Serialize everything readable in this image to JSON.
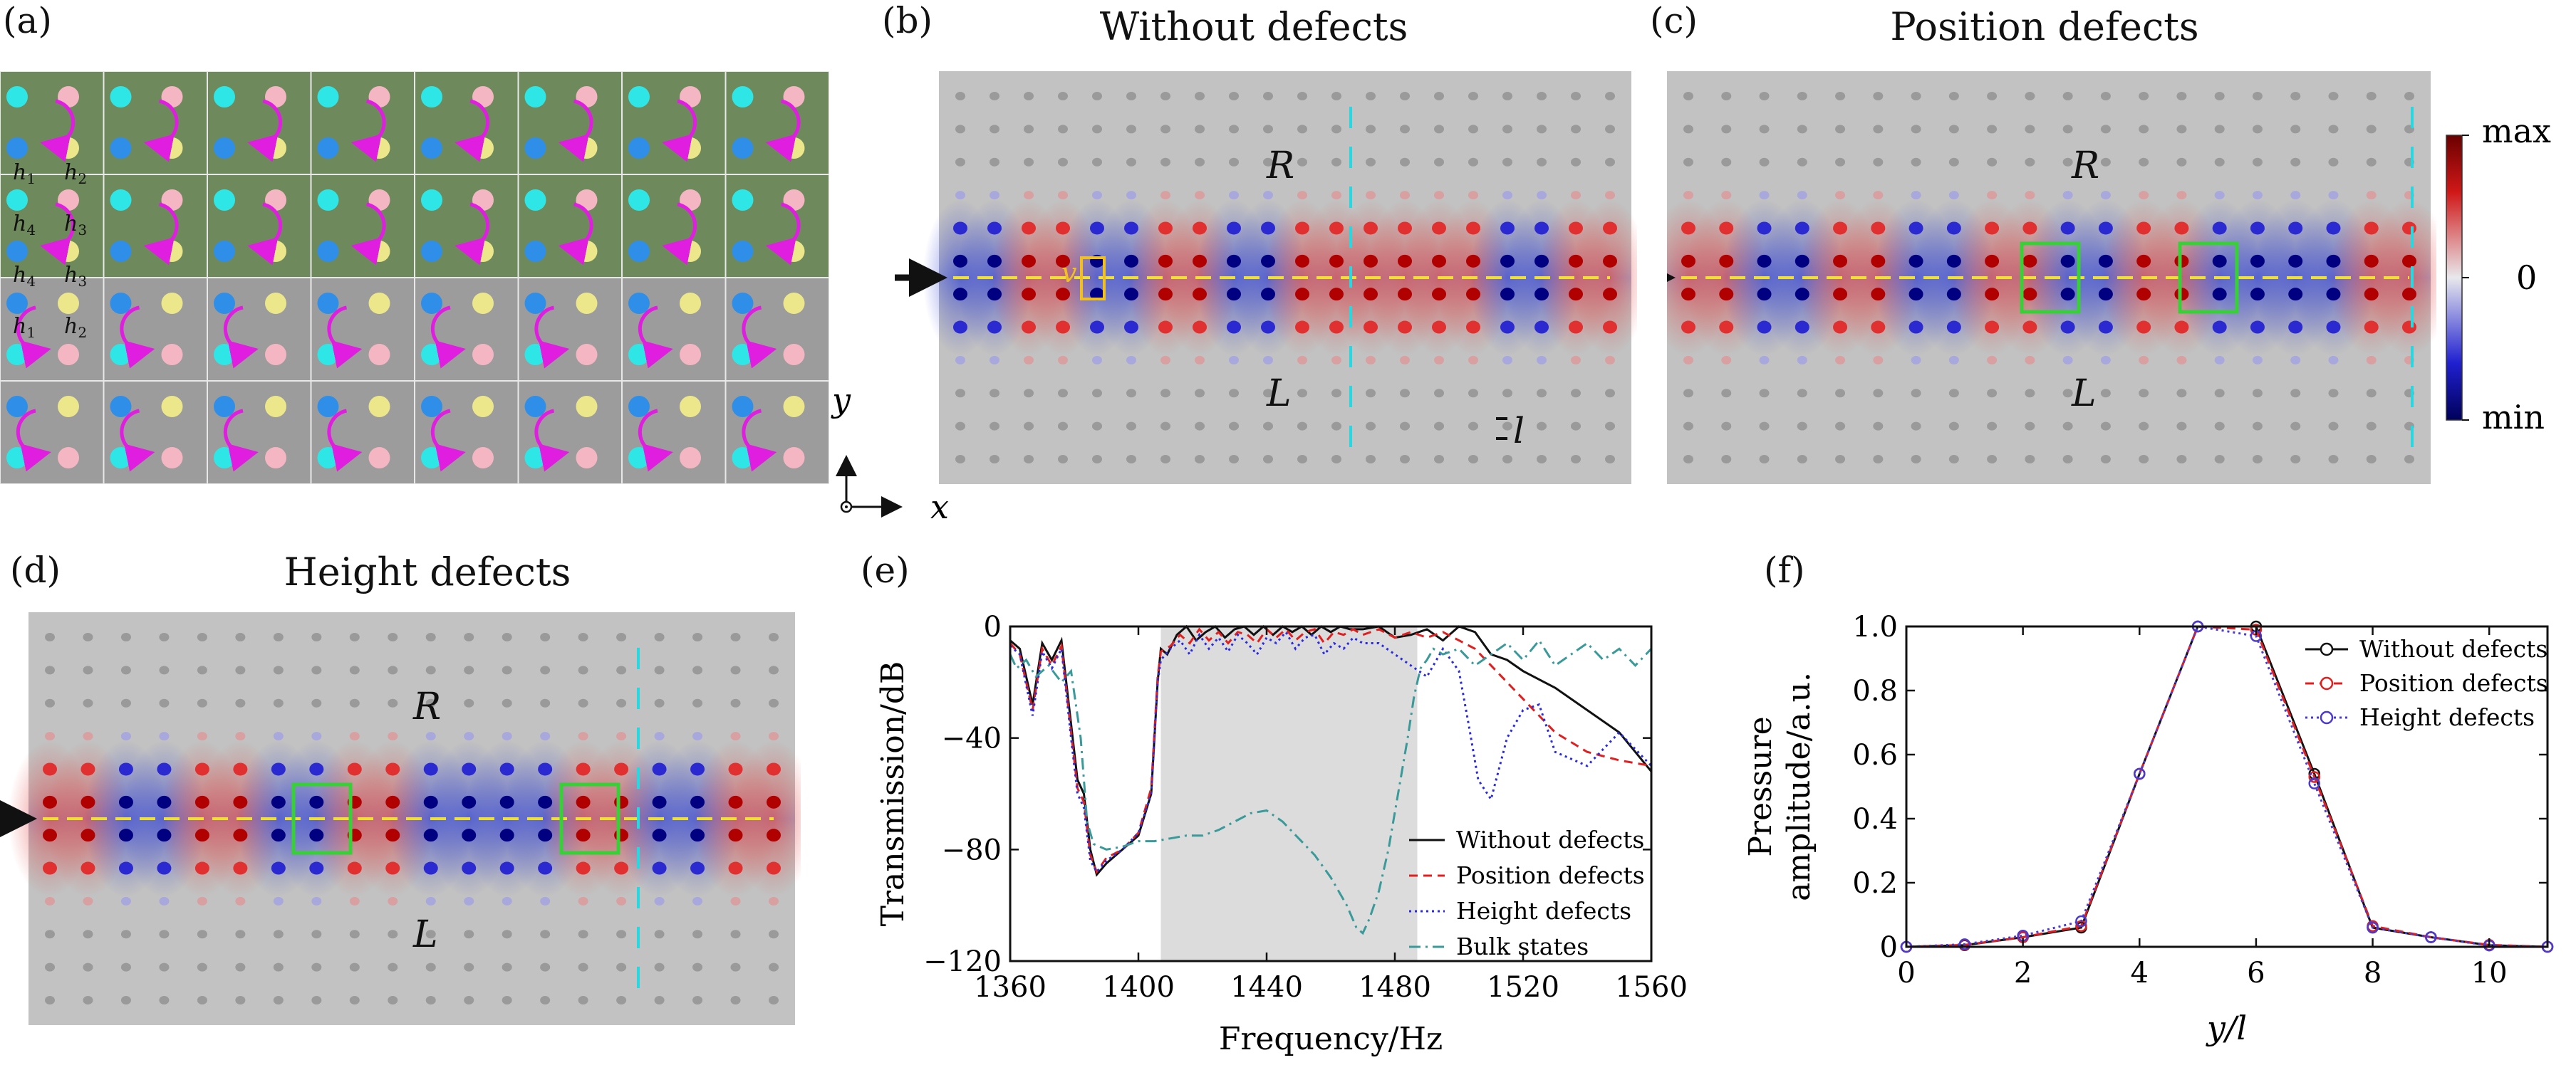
{
  "panels": {
    "a": {
      "label": "(a)",
      "h1": "h1",
      "h2": "h2",
      "h3": "h3",
      "h4": "h4",
      "sub1": "1",
      "sub2": "2",
      "sub3": "3",
      "sub4": "4"
    },
    "b": {
      "label": "(b)",
      "title": "Without defects",
      "R": "R",
      "L": "L",
      "v": "v",
      "l": "l"
    },
    "c": {
      "label": "(c)",
      "title": "Position defects",
      "R": "R",
      "L": "L",
      "colorbar": {
        "max": "max",
        "zero": "0",
        "min": "min"
      }
    },
    "d": {
      "label": "(d)",
      "title": "Height defects",
      "R": "R",
      "L": "L"
    },
    "e": {
      "label": "(e)"
    },
    "f": {
      "label": "(f)"
    },
    "axes_arrow": {
      "y": "y",
      "x": "x"
    }
  },
  "colors": {
    "green_cell": "#6e8a5c",
    "gray_cell": "#9c9c9c",
    "cyan": "#2ee6e6",
    "blue": "#2f8fe8",
    "pink": "#f4b6c2",
    "yellow": "#ece78a",
    "magenta": "#e01ee0",
    "plate": "#c2c2c2"
  },
  "chart_data": [
    {
      "type": "line",
      "panel": "e",
      "xlabel": "Frequency/Hz",
      "ylabel": "Transmission/dB",
      "xlim": [
        1360,
        1560
      ],
      "ylim": [
        -120,
        0
      ],
      "xticks": [
        1360,
        1400,
        1440,
        1480,
        1520,
        1560
      ],
      "yticks": [
        0,
        -40,
        -80,
        -120
      ],
      "ytick_labels": [
        "0",
        "−40",
        "−80",
        "−120"
      ],
      "shaded_band": [
        1407,
        1487
      ],
      "legend": [
        "Without defects",
        "Position defects",
        "Height defects",
        "Bulk states"
      ],
      "legend_position": "bottom-right",
      "series": [
        {
          "name": "Without defects",
          "color": "#111111",
          "dash": "solid",
          "x": [
            1360,
            1363,
            1367,
            1370,
            1373,
            1376,
            1379,
            1381,
            1383,
            1385,
            1387,
            1390,
            1395,
            1400,
            1404,
            1406,
            1407,
            1409,
            1412,
            1415,
            1418,
            1421,
            1424,
            1427,
            1430,
            1433,
            1436,
            1439,
            1442,
            1445,
            1448,
            1451,
            1454,
            1457,
            1460,
            1463,
            1466,
            1470,
            1475,
            1480,
            1485,
            1490,
            1495,
            1500,
            1505,
            1510,
            1515,
            1520,
            1530,
            1540,
            1550,
            1560
          ],
          "y": [
            -5,
            -8,
            -28,
            -6,
            -12,
            -5,
            -35,
            -55,
            -60,
            -80,
            -89,
            -85,
            -80,
            -75,
            -60,
            -20,
            -8,
            -10,
            -3,
            0,
            -5,
            -2,
            0,
            -4,
            -1,
            0,
            -3,
            0,
            -3,
            0,
            -2,
            0,
            -3,
            0,
            -2,
            0,
            -1,
            -1,
            0,
            -4,
            -3,
            -1,
            -5,
            0,
            -2,
            -10,
            -12,
            -16,
            -22,
            -30,
            -38,
            -52
          ]
        },
        {
          "name": "Position defects",
          "color": "#e02020",
          "dash": "dashed",
          "x": [
            1360,
            1363,
            1367,
            1370,
            1373,
            1376,
            1379,
            1381,
            1383,
            1385,
            1387,
            1390,
            1395,
            1400,
            1404,
            1406,
            1407,
            1410,
            1413,
            1416,
            1419,
            1422,
            1425,
            1428,
            1431,
            1434,
            1437,
            1440,
            1443,
            1446,
            1449,
            1452,
            1455,
            1458,
            1461,
            1464,
            1467,
            1470,
            1475,
            1480,
            1485,
            1490,
            1495,
            1500,
            1505,
            1510,
            1515,
            1520,
            1530,
            1540,
            1550,
            1560
          ],
          "y": [
            -6,
            -10,
            -30,
            -8,
            -14,
            -7,
            -38,
            -58,
            -63,
            -82,
            -88,
            -83,
            -80,
            -74,
            -58,
            -18,
            -9,
            -7,
            -3,
            -6,
            -1,
            -5,
            -2,
            -6,
            -2,
            -3,
            -6,
            -1,
            -4,
            -1,
            -5,
            -2,
            -1,
            -6,
            -2,
            -3,
            -1,
            -3,
            -1,
            -4,
            -2,
            -4,
            -2,
            -5,
            -8,
            -14,
            -20,
            -26,
            -38,
            -45,
            -48,
            -50
          ]
        },
        {
          "name": "Height defects",
          "color": "#2a2ae0",
          "dash": "dotted",
          "x": [
            1360,
            1363,
            1367,
            1370,
            1373,
            1376,
            1379,
            1381,
            1383,
            1385,
            1387,
            1390,
            1395,
            1400,
            1404,
            1406,
            1407,
            1410,
            1413,
            1416,
            1419,
            1422,
            1425,
            1428,
            1431,
            1434,
            1437,
            1440,
            1443,
            1446,
            1449,
            1452,
            1455,
            1458,
            1461,
            1464,
            1467,
            1470,
            1475,
            1480,
            1485,
            1490,
            1495,
            1500,
            1503,
            1506,
            1510,
            1515,
            1520,
            1525,
            1530,
            1540,
            1550,
            1560
          ],
          "y": [
            -7,
            -10,
            -32,
            -9,
            -15,
            -8,
            -40,
            -60,
            -65,
            -84,
            -88,
            -84,
            -80,
            -74,
            -60,
            -20,
            -12,
            -8,
            -5,
            -10,
            -3,
            -8,
            -4,
            -9,
            -3,
            -6,
            -10,
            -4,
            -6,
            -2,
            -8,
            -4,
            -3,
            -10,
            -6,
            -8,
            -4,
            -6,
            -6,
            -10,
            -14,
            -18,
            -8,
            -16,
            -35,
            -55,
            -62,
            -40,
            -30,
            -28,
            -45,
            -50,
            -38,
            -50
          ]
        },
        {
          "name": "Bulk states",
          "color": "#3a9a9a",
          "dash": "dashdot",
          "x": [
            1360,
            1362,
            1365,
            1368,
            1372,
            1376,
            1379,
            1382,
            1384,
            1386,
            1390,
            1395,
            1400,
            1405,
            1410,
            1415,
            1420,
            1425,
            1430,
            1435,
            1440,
            1445,
            1450,
            1455,
            1460,
            1465,
            1468,
            1470,
            1472,
            1475,
            1478,
            1481,
            1484,
            1486,
            1488,
            1490,
            1492,
            1495,
            1500,
            1505,
            1510,
            1515,
            1520,
            1525,
            1530,
            1535,
            1540,
            1545,
            1550,
            1555,
            1560
          ],
          "y": [
            -10,
            -15,
            -12,
            -18,
            -14,
            -20,
            -16,
            -40,
            -70,
            -78,
            -80,
            -79,
            -77,
            -77,
            -76,
            -75,
            -75,
            -73,
            -70,
            -67,
            -66,
            -70,
            -76,
            -82,
            -90,
            -100,
            -108,
            -110,
            -105,
            -95,
            -80,
            -60,
            -40,
            -25,
            -15,
            -12,
            -8,
            -10,
            -8,
            -14,
            -10,
            -6,
            -12,
            -5,
            -14,
            -10,
            -6,
            -12,
            -8,
            -14,
            -8
          ]
        }
      ]
    },
    {
      "type": "line",
      "panel": "f",
      "xlabel": "y/l",
      "ylabel_line1": "Pressure",
      "ylabel_line2": "amplitude/a.u.",
      "xlim": [
        0,
        11
      ],
      "ylim": [
        0,
        1.0
      ],
      "xticks": [
        0,
        2,
        4,
        6,
        8,
        10
      ],
      "yticks": [
        0,
        0.2,
        0.4,
        0.6,
        0.8,
        1.0
      ],
      "ytick_labels": [
        "0",
        "0.2",
        "0.4",
        "0.6",
        "0.8",
        "1.0"
      ],
      "legend": [
        "Without defects",
        "Position defects",
        "Height defects"
      ],
      "legend_position": "top-right",
      "x": [
        0,
        1,
        2,
        3,
        4,
        5,
        6,
        7,
        8,
        9,
        10,
        11
      ],
      "series": [
        {
          "name": "Without defects",
          "color": "#111111",
          "dash": "solid",
          "marker": "circle",
          "values": [
            0.0,
            0.005,
            0.03,
            0.06,
            0.54,
            1.0,
            1.0,
            0.54,
            0.06,
            0.03,
            0.005,
            0.0
          ]
        },
        {
          "name": "Position defects",
          "color": "#e02020",
          "dash": "dashed",
          "marker": "circle",
          "values": [
            0.0,
            0.006,
            0.03,
            0.065,
            0.54,
            1.0,
            0.99,
            0.53,
            0.065,
            0.03,
            0.006,
            0.0
          ]
        },
        {
          "name": "Height defects",
          "color": "#4a3ad0",
          "dash": "dotted",
          "marker": "circle",
          "values": [
            0.0,
            0.008,
            0.035,
            0.08,
            0.54,
            1.0,
            0.97,
            0.51,
            0.06,
            0.03,
            0.004,
            0.0
          ]
        }
      ]
    }
  ]
}
